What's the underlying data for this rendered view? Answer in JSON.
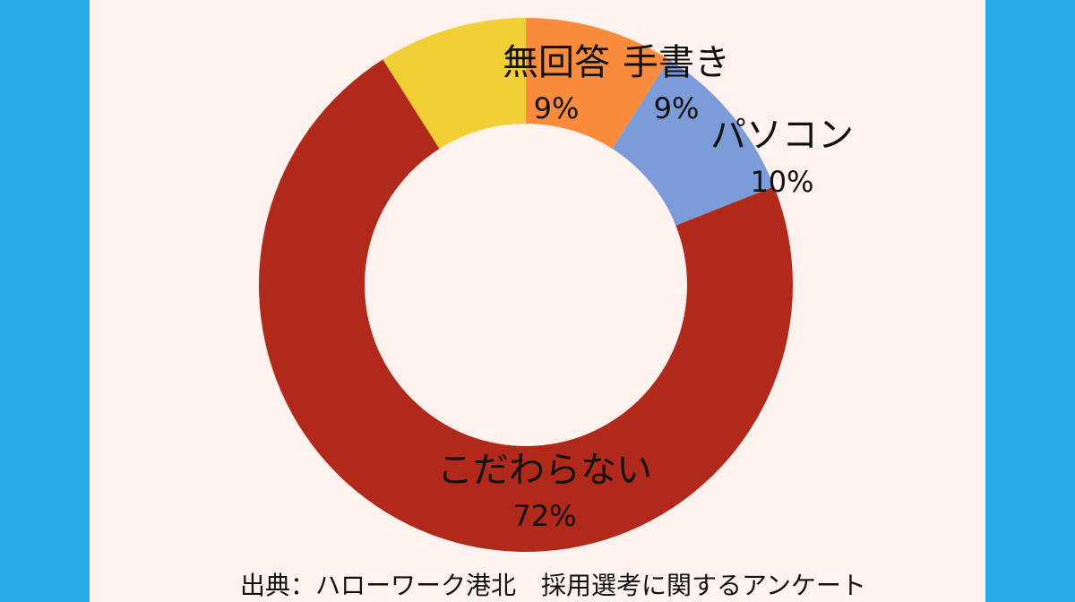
{
  "chart_data": {
    "type": "pie",
    "donut": true,
    "start_angle": "12 o'clock, clockwise",
    "slices": [
      {
        "label": "手書き",
        "value": 9,
        "value_label": "9%",
        "color": "#f98c3c"
      },
      {
        "label": "パソコン",
        "value": 10,
        "value_label": "10%",
        "color": "#7b9bd9"
      },
      {
        "label": "こだわらない",
        "value": 72,
        "value_label": "72%",
        "color": "#b0291a"
      },
      {
        "label": "無回答",
        "value": 9,
        "value_label": "9%",
        "color": "#f2cf35"
      }
    ],
    "legend": "none",
    "source": "出典：ハローワーク港北　採用選考に関するアンケート"
  },
  "colors": {
    "background": "#fdf2ee",
    "side_bars": "#29a9e5"
  }
}
